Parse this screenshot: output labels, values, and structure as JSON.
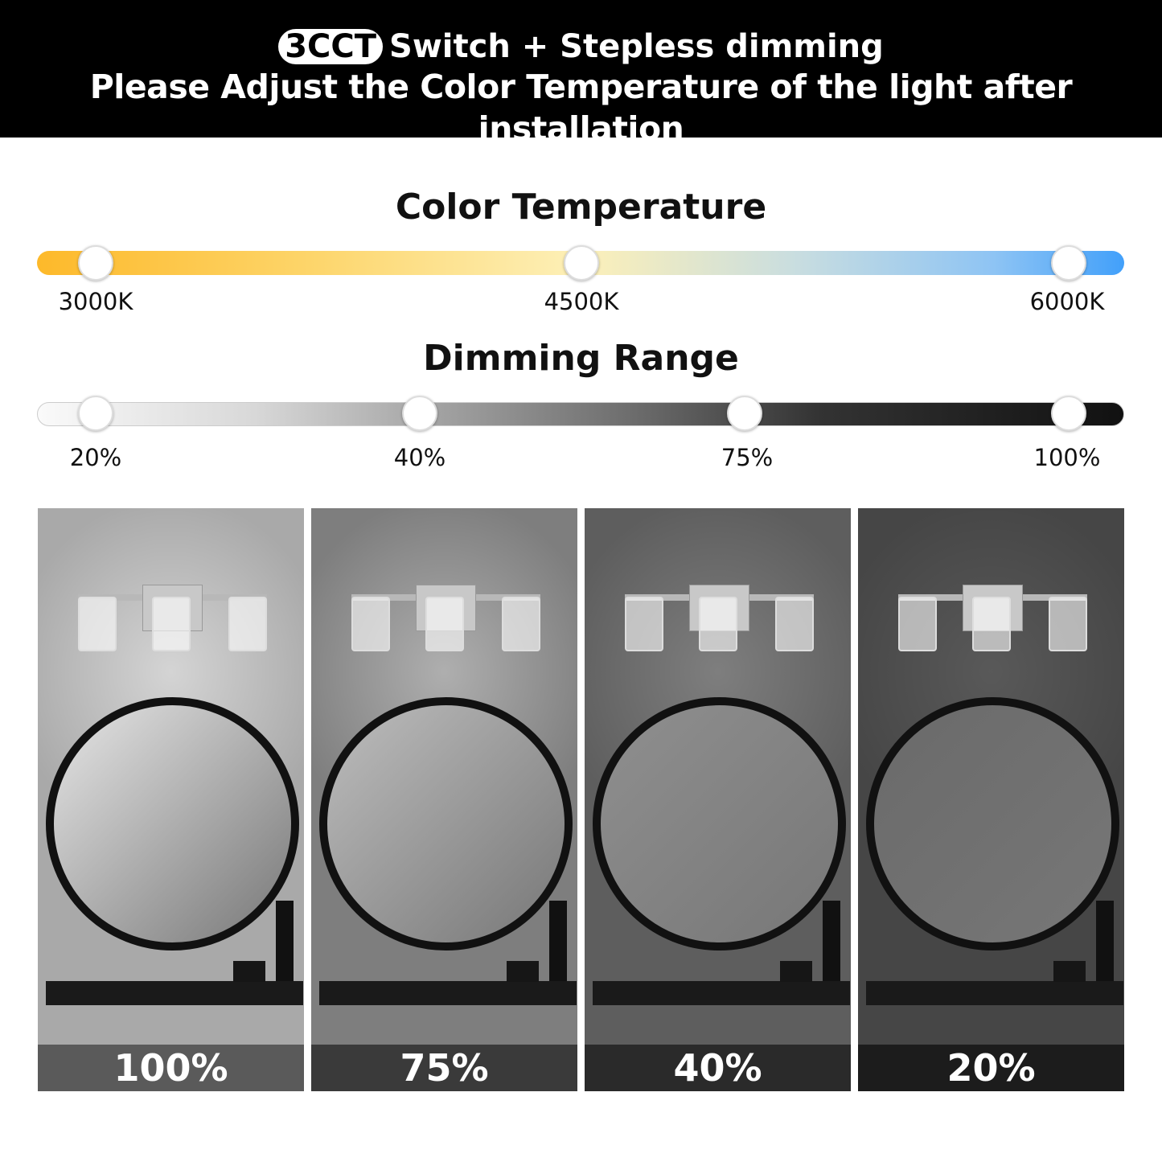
{
  "header": {
    "badge": "3CCT",
    "line1": "Switch + Stepless dimming",
    "line2": "Please Adjust the Color Temperature of the light after installation"
  },
  "color_temperature": {
    "title": "Color Temperature",
    "stops": [
      "3000K",
      "4500K",
      "6000K"
    ],
    "colors": [
      "#fdb92a",
      "#fdf0b8",
      "#42a0fa"
    ]
  },
  "dimming_range": {
    "title": "Dimming Range",
    "stops": [
      "20%",
      "40%",
      "75%",
      "100%"
    ]
  },
  "panels": [
    {
      "label": "100%",
      "brightness": 1.0,
      "wall": "#a9a9a9",
      "band": "#5a5a5a",
      "mirror": "#e6e6e6"
    },
    {
      "label": "75%",
      "brightness": 0.75,
      "wall": "#7e7e7e",
      "band": "#3a3a3a",
      "mirror": "#bdbdbd"
    },
    {
      "label": "40%",
      "brightness": 0.4,
      "wall": "#5e5e5e",
      "band": "#2a2a2a",
      "mirror": "#8f8f8f"
    },
    {
      "label": "20%",
      "brightness": 0.2,
      "wall": "#464646",
      "band": "#1c1c1c",
      "mirror": "#6a6a6a"
    }
  ]
}
